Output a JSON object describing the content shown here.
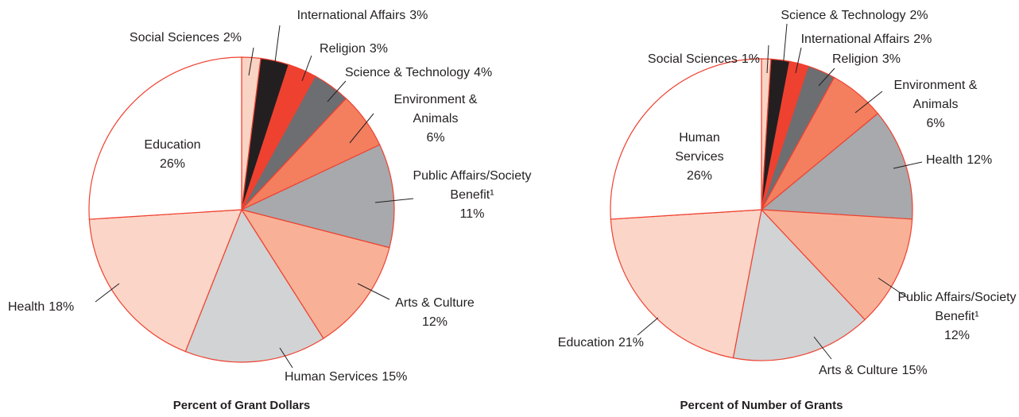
{
  "chart_data": [
    {
      "type": "pie",
      "title": "Percent of Grant Dollars",
      "categories": [
        "Social Sciences",
        "International Affairs",
        "Religion",
        "Science & Technology",
        "Environment & Animals",
        "Public Affairs/Society Benefit¹",
        "Arts & Culture",
        "Human Services",
        "Health",
        "Education"
      ],
      "values": [
        2,
        3,
        3,
        4,
        6,
        11,
        12,
        15,
        18,
        26
      ],
      "value_labels": [
        "2%",
        "3%",
        "3%",
        "4%",
        "6%",
        "11%",
        "12%",
        "15%",
        "18%",
        "26%"
      ],
      "colors": [
        "#f9d3c3",
        "#231f20",
        "#ef4130",
        "#6d6e71",
        "#f37f5f",
        "#a7a9ac",
        "#f8b197",
        "#d1d3d4",
        "#fbd6c8",
        "#ffffff"
      ]
    },
    {
      "type": "pie",
      "title": "Percent of Number of Grants",
      "categories": [
        "Social Sciences",
        "Science & Technology",
        "International Affairs",
        "Religion",
        "Environment & Animals",
        "Health",
        "Public Affairs/Society Benefit¹",
        "Arts & Culture",
        "Education",
        "Human Services"
      ],
      "values": [
        1,
        2,
        2,
        3,
        6,
        12,
        12,
        15,
        21,
        26
      ],
      "value_labels": [
        "1%",
        "2%",
        "2%",
        "3%",
        "6%",
        "12%",
        "12%",
        "15%",
        "21%",
        "26%"
      ],
      "colors": [
        "#f9d3c3",
        "#231f20",
        "#ef4130",
        "#6d6e71",
        "#f37f5f",
        "#a7a9ac",
        "#f8b197",
        "#d1d3d4",
        "#fbd6c8",
        "#ffffff"
      ]
    }
  ]
}
